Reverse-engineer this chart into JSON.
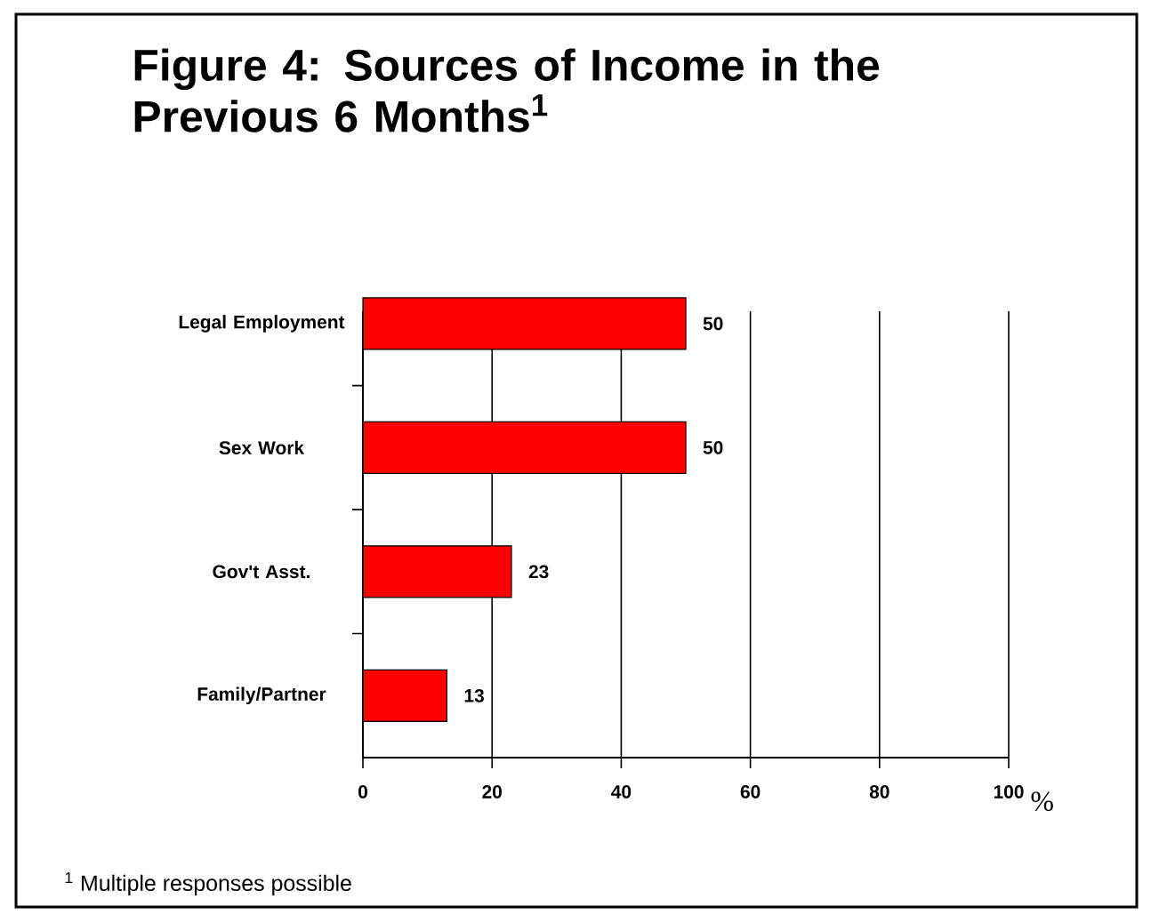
{
  "chart_data": {
    "type": "bar",
    "orientation": "horizontal",
    "title": "Figure 4: Sources of Income in the Previous 6 Months$^{1}$",
    "categories": [
      "Legal Employment",
      "Sex Work",
      "Gov't Asst.",
      "Family/Partner"
    ],
    "values": [
      50,
      50,
      23,
      13
    ],
    "color": "#ff0000",
    "xlim": [
      0,
      100
    ],
    "xticks": [
      0,
      20,
      40,
      60,
      80,
      100
    ],
    "xlabel": "%",
    "grid": "x",
    "data_labels": true,
    "annotations": [
      "$^{1}$ Multiple responses possible"
    ]
  }
}
